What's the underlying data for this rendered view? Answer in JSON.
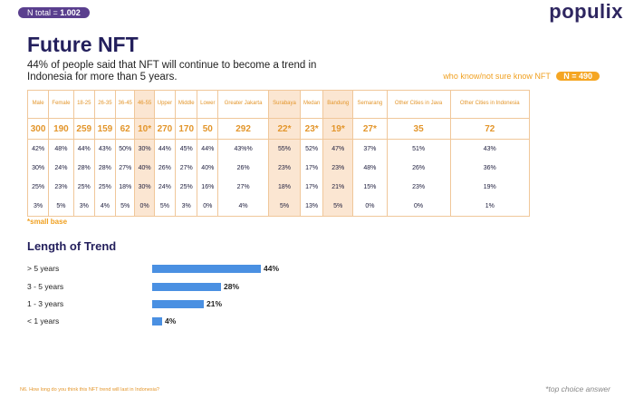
{
  "header": {
    "n_total_label": "N total = ",
    "n_total_value": "1.002",
    "brand": "populix"
  },
  "title": "Future NFT",
  "subtitle": "44% of people said that NFT will continue to become a trend in Indonesia for more than 5 years.",
  "base_note": {
    "label": "who know/not sure know NFT",
    "n_badge": "N = 490"
  },
  "table": {
    "columns": [
      {
        "header": "Male",
        "n": "300",
        "rows": [
          "42%",
          "30%",
          "25%",
          "3%"
        ]
      },
      {
        "header": "Female",
        "n": "190",
        "rows": [
          "48%",
          "24%",
          "23%",
          "5%"
        ]
      },
      {
        "header": "18-25",
        "n": "259",
        "rows": [
          "44%",
          "28%",
          "25%",
          "3%"
        ]
      },
      {
        "header": "26-35",
        "n": "159",
        "rows": [
          "43%",
          "28%",
          "25%",
          "4%"
        ]
      },
      {
        "header": "36-45",
        "n": "62",
        "rows": [
          "50%",
          "27%",
          "18%",
          "5%"
        ]
      },
      {
        "header": "46-55",
        "n": "10*",
        "rows": [
          "30%",
          "40%",
          "30%",
          "0%"
        ],
        "shaded": true
      },
      {
        "header": "Upper",
        "n": "270",
        "rows": [
          "44%",
          "26%",
          "24%",
          "5%"
        ]
      },
      {
        "header": "Middle",
        "n": "170",
        "rows": [
          "45%",
          "27%",
          "25%",
          "3%"
        ]
      },
      {
        "header": "Lower",
        "n": "50",
        "rows": [
          "44%",
          "40%",
          "16%",
          "0%"
        ]
      },
      {
        "header": "Greater Jakarta",
        "n": "292",
        "rows": [
          "43%%",
          "26%",
          "27%",
          "4%"
        ]
      },
      {
        "header": "Surabaya",
        "n": "22*",
        "rows": [
          "55%",
          "23%",
          "18%",
          "5%"
        ],
        "shaded": true
      },
      {
        "header": "Medan",
        "n": "23*",
        "rows": [
          "52%",
          "17%",
          "17%",
          "13%"
        ]
      },
      {
        "header": "Bandung",
        "n": "19*",
        "rows": [
          "47%",
          "23%",
          "21%",
          "5%"
        ],
        "shaded": true
      },
      {
        "header": "Semarang",
        "n": "27*",
        "rows": [
          "37%",
          "48%",
          "15%",
          "0%"
        ]
      },
      {
        "header": "Other Cities in Java",
        "n": "35",
        "rows": [
          "51%",
          "26%",
          "23%",
          "0%"
        ]
      },
      {
        "header": "Other Cities in Indonesia",
        "n": "72",
        "rows": [
          "43%",
          "36%",
          "19%",
          "1%"
        ]
      }
    ]
  },
  "small_base_note": "*small base",
  "chart_title": "Length of Trend",
  "chart_data": {
    "type": "bar",
    "orientation": "horizontal",
    "title": "Length of Trend",
    "categories": [
      "> 5 years",
      "3 - 5 years",
      "1 - 3 years",
      "< 1 years"
    ],
    "values": [
      44,
      28,
      21,
      4
    ],
    "value_labels": [
      "44%",
      "28%",
      "21%",
      "4%"
    ],
    "bar_color": "#4a90e2",
    "grid": false
  },
  "footnote": "N6. How long do you think this NFT trend will last in Indonesia?",
  "top_choice_note": "*top choice answer"
}
